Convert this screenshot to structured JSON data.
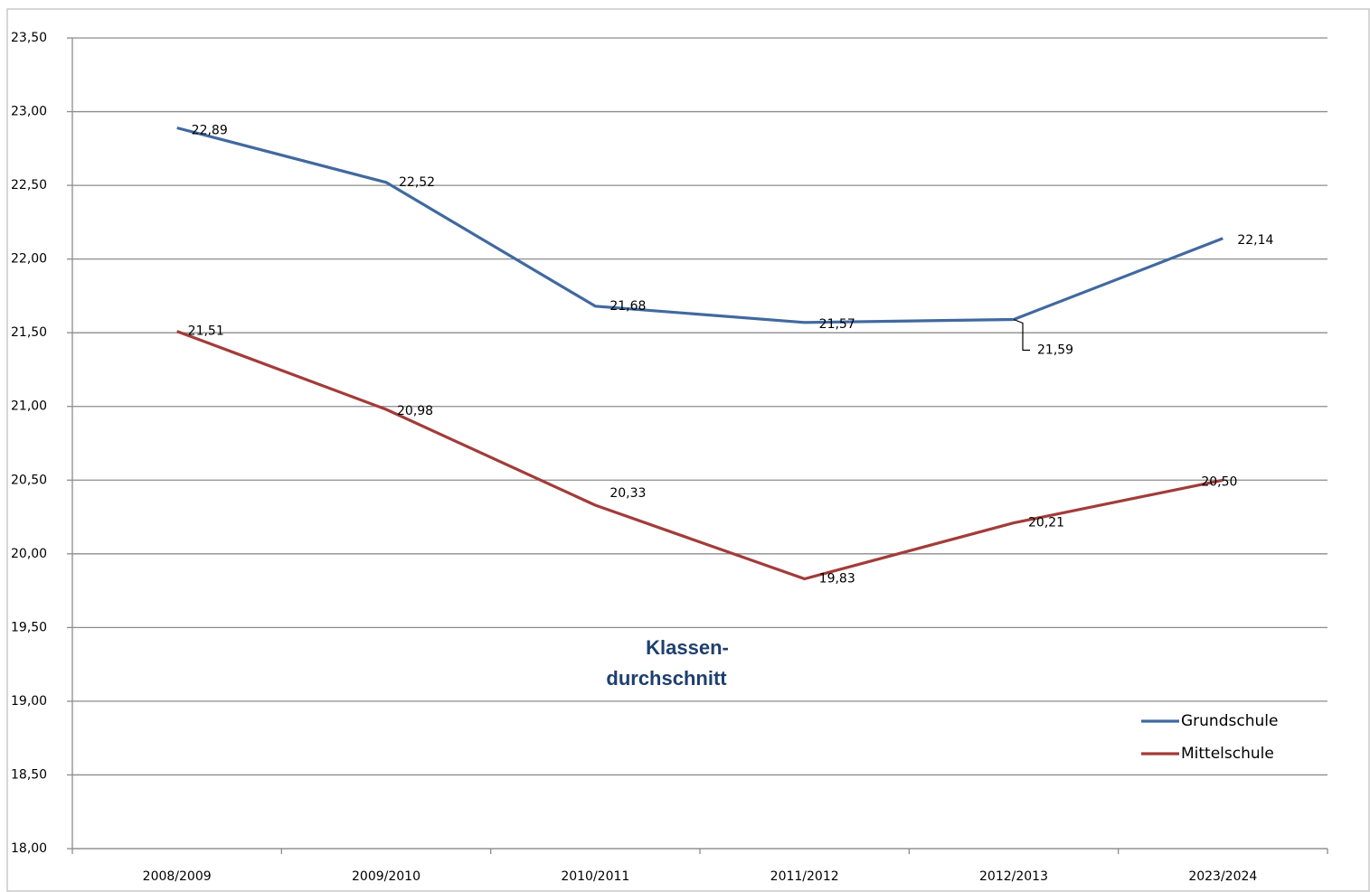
{
  "chart_data": {
    "type": "line",
    "title": [
      "Klassen-",
      "durchschnitt"
    ],
    "categories": [
      "2008/2009",
      "2009/2010",
      "2010/2011",
      "2011/2012",
      "2012/2013",
      "2023/2024"
    ],
    "series": [
      {
        "name": "Grundschule",
        "color": "#41699f",
        "values": [
          22.89,
          22.52,
          21.68,
          21.57,
          21.59,
          22.14
        ],
        "value_labels": [
          "22,89",
          "22,52",
          "21,68",
          "21,57",
          "21,59",
          "22,14"
        ]
      },
      {
        "name": "Mittelschule",
        "color": "#a23c3a",
        "values": [
          21.51,
          20.98,
          20.33,
          19.83,
          20.21,
          20.5
        ],
        "value_labels": [
          "21,51",
          "20,98",
          "20,33",
          "19,83",
          "20,21",
          "20,50"
        ]
      }
    ],
    "ylim": [
      18.0,
      23.5
    ],
    "yticks": [
      {
        "value": 18.0,
        "label": "18,00"
      },
      {
        "value": 18.5,
        "label": "18,50"
      },
      {
        "value": 19.0,
        "label": "19,00"
      },
      {
        "value": 19.5,
        "label": "19,50"
      },
      {
        "value": 20.0,
        "label": "20,00"
      },
      {
        "value": 20.5,
        "label": "20,50"
      },
      {
        "value": 21.0,
        "label": "21,00"
      },
      {
        "value": 21.5,
        "label": "21,50"
      },
      {
        "value": 22.0,
        "label": "22,00"
      },
      {
        "value": 22.5,
        "label": "22,50"
      },
      {
        "value": 23.0,
        "label": "23,00"
      },
      {
        "value": 23.5,
        "label": "23,50"
      }
    ],
    "grid": true,
    "legend": "lower right"
  }
}
